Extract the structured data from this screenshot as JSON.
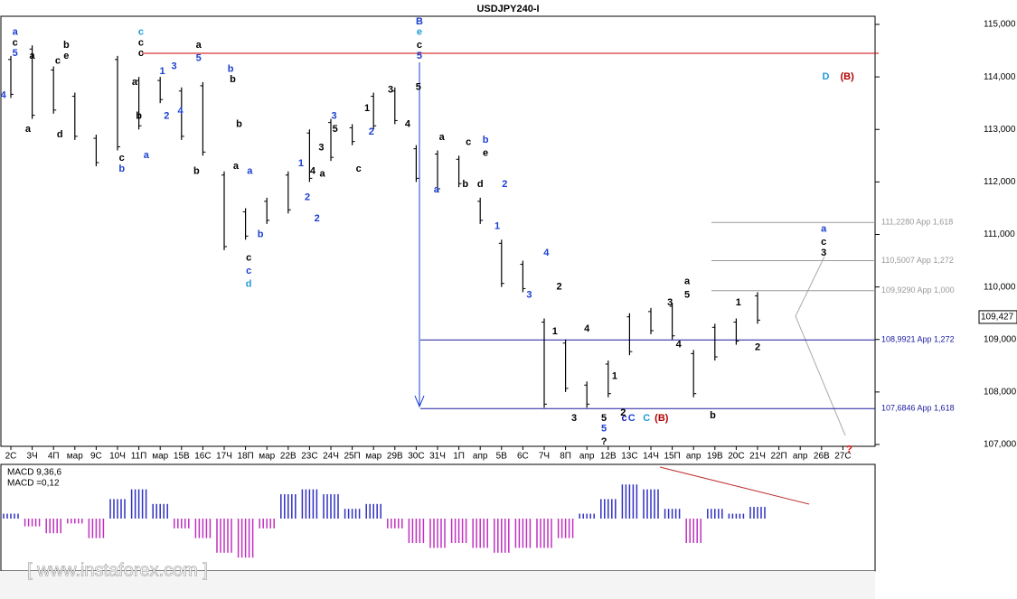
{
  "chart_data": [
    {
      "type": "ohlc",
      "title": "USDJPY240-I",
      "categories": [
        "2C",
        "3Ч",
        "4П",
        "мар",
        "9C",
        "10Ч",
        "11П",
        "мар",
        "15B",
        "16C",
        "17Ч",
        "18П",
        "мар",
        "22B",
        "23C",
        "24Ч",
        "25П",
        "мар",
        "29B",
        "30C",
        "31Ч",
        "1П",
        "апр",
        "5B",
        "6C",
        "7Ч",
        "8П",
        "апр",
        "12B",
        "13C",
        "14Ч",
        "15П",
        "апр",
        "19B",
        "20C",
        "21Ч",
        "22П",
        "апр",
        "26B",
        "27C"
      ],
      "high": [
        114.4,
        114.6,
        114.2,
        113.7,
        112.9,
        114.4,
        114.0,
        114.0,
        113.8,
        113.9,
        112.2,
        111.5,
        111.7,
        112.2,
        113.0,
        113.2,
        113.1,
        113.7,
        113.8,
        112.7,
        112.6,
        112.5,
        111.7,
        110.9,
        110.5,
        109.4,
        109.0,
        108.2,
        108.6,
        109.5,
        109.6,
        109.7,
        108.8,
        109.3,
        109.4,
        109.9,
        null,
        null,
        null,
        null
      ],
      "low": [
        113.6,
        113.2,
        113.3,
        112.8,
        112.3,
        112.6,
        113.0,
        113.5,
        112.8,
        112.5,
        110.7,
        110.9,
        111.2,
        111.4,
        112.0,
        112.4,
        112.7,
        113.0,
        113.1,
        112.0,
        111.8,
        111.9,
        111.2,
        110.0,
        109.9,
        107.7,
        108.0,
        107.7,
        107.9,
        108.7,
        109.1,
        109.0,
        107.9,
        108.6,
        108.9,
        109.3,
        null,
        null,
        null,
        null
      ],
      "ylim": [
        107,
        115
      ],
      "yticks": [
        {
          "value": 107,
          "label": "107,000"
        },
        {
          "value": 108,
          "label": "108,000"
        },
        {
          "value": 109,
          "label": "109,000"
        },
        {
          "value": 110,
          "label": "110,000"
        },
        {
          "value": 111,
          "label": "111,000"
        },
        {
          "value": 112,
          "label": "112,000"
        },
        {
          "value": 113,
          "label": "113,000"
        },
        {
          "value": 114,
          "label": "114,000"
        },
        {
          "value": 115,
          "label": "115,000"
        }
      ],
      "last_price": {
        "value": 109.427,
        "label": "109,427"
      },
      "color": "#000000",
      "levels": [
        {
          "value": 114.45,
          "color": "#cc0000"
        },
        {
          "value": 111.228,
          "label": "111,2280 App 1,618",
          "color": "#999999"
        },
        {
          "value": 110.5007,
          "label": "110,5007 App 1,272",
          "color": "#999999"
        },
        {
          "value": 109.929,
          "label": "109,9290 App 1,000",
          "color": "#999999"
        },
        {
          "value": 108.9921,
          "label": "108,9921 App 1,272",
          "color": "#1a1aa0"
        },
        {
          "value": 107.6846,
          "label": "107,6846 App 1,618",
          "color": "#1a1aa0"
        }
      ],
      "annotations": [
        {
          "text": "a",
          "x": 0.2,
          "y": 114.85,
          "color": "#1a3fd0"
        },
        {
          "text": "c",
          "x": 0.2,
          "y": 114.65,
          "color": "#000000"
        },
        {
          "text": "5",
          "x": 0.2,
          "y": 114.45,
          "color": "#1a3fd0"
        },
        {
          "text": "4",
          "x": -0.35,
          "y": 113.65,
          "color": "#1a3fd0"
        },
        {
          "text": "a",
          "x": 1.0,
          "y": 114.4,
          "color": "#000000"
        },
        {
          "text": "a",
          "x": 0.8,
          "y": 113.0,
          "color": "#000000"
        },
        {
          "text": "d",
          "x": 2.3,
          "y": 112.9,
          "color": "#000000"
        },
        {
          "text": "c",
          "x": 2.2,
          "y": 114.3,
          "color": "#000000"
        },
        {
          "text": "e",
          "x": 2.6,
          "y": 114.4,
          "color": "#000000"
        },
        {
          "text": "b",
          "x": 2.6,
          "y": 114.6,
          "color": "#000000"
        },
        {
          "text": "c",
          "x": 6.1,
          "y": 114.85,
          "color": "#1e9ad6"
        },
        {
          "text": "c",
          "x": 6.1,
          "y": 114.65,
          "color": "#000000"
        },
        {
          "text": "c",
          "x": 6.1,
          "y": 114.45,
          "color": "#000000"
        },
        {
          "text": "a",
          "x": 5.8,
          "y": 113.9,
          "color": "#000000"
        },
        {
          "text": "b",
          "x": 6.0,
          "y": 113.25,
          "color": "#000000"
        },
        {
          "text": "a",
          "x": 6.35,
          "y": 112.5,
          "color": "#1a3fd0"
        },
        {
          "text": "c",
          "x": 5.2,
          "y": 112.45,
          "color": "#000000"
        },
        {
          "text": "b",
          "x": 5.2,
          "y": 112.25,
          "color": "#1a3fd0"
        },
        {
          "text": "1",
          "x": 7.1,
          "y": 114.1,
          "color": "#1a3fd0"
        },
        {
          "text": "3",
          "x": 7.65,
          "y": 114.2,
          "color": "#1a3fd0"
        },
        {
          "text": "2",
          "x": 7.3,
          "y": 113.25,
          "color": "#1a3fd0"
        },
        {
          "text": "4",
          "x": 7.95,
          "y": 113.35,
          "color": "#1a3fd0"
        },
        {
          "text": "a",
          "x": 8.8,
          "y": 114.6,
          "color": "#000000"
        },
        {
          "text": "5",
          "x": 8.8,
          "y": 114.35,
          "color": "#1a3fd0"
        },
        {
          "text": "b",
          "x": 8.7,
          "y": 112.2,
          "color": "#000000"
        },
        {
          "text": "b",
          "x": 10.3,
          "y": 114.15,
          "color": "#1a3fd0"
        },
        {
          "text": "b",
          "x": 10.4,
          "y": 113.95,
          "color": "#000000"
        },
        {
          "text": "b",
          "x": 10.7,
          "y": 113.1,
          "color": "#000000"
        },
        {
          "text": "a",
          "x": 10.55,
          "y": 112.3,
          "color": "#000000"
        },
        {
          "text": "a",
          "x": 11.2,
          "y": 112.2,
          "color": "#1a3fd0"
        },
        {
          "text": "b",
          "x": 11.7,
          "y": 111.0,
          "color": "#1a3fd0"
        },
        {
          "text": "c",
          "x": 11.15,
          "y": 110.55,
          "color": "#000000"
        },
        {
          "text": "c",
          "x": 11.15,
          "y": 110.3,
          "color": "#1a3fd0"
        },
        {
          "text": "d",
          "x": 11.15,
          "y": 110.05,
          "color": "#1e9ad6"
        },
        {
          "text": "1",
          "x": 13.6,
          "y": 112.35,
          "color": "#1a3fd0"
        },
        {
          "text": "2",
          "x": 13.9,
          "y": 111.7,
          "color": "#1a3fd0"
        },
        {
          "text": "2",
          "x": 14.35,
          "y": 111.3,
          "color": "#1a3fd0"
        },
        {
          "text": "3",
          "x": 14.55,
          "y": 112.65,
          "color": "#000000"
        },
        {
          "text": "4",
          "x": 14.15,
          "y": 112.2,
          "color": "#000000"
        },
        {
          "text": "3",
          "x": 15.15,
          "y": 113.25,
          "color": "#1a3fd0"
        },
        {
          "text": "5",
          "x": 15.2,
          "y": 113.0,
          "color": "#000000"
        },
        {
          "text": "a",
          "x": 14.6,
          "y": 112.15,
          "color": "#000000"
        },
        {
          "text": "c",
          "x": 16.3,
          "y": 112.25,
          "color": "#000000"
        },
        {
          "text": "1",
          "x": 16.7,
          "y": 113.4,
          "color": "#000000"
        },
        {
          "text": "2",
          "x": 16.9,
          "y": 112.95,
          "color": "#1a3fd0"
        },
        {
          "text": "3",
          "x": 17.8,
          "y": 113.75,
          "color": "#000000"
        },
        {
          "text": "4",
          "x": 18.6,
          "y": 113.1,
          "color": "#000000"
        },
        {
          "text": "B",
          "x": 19.15,
          "y": 115.05,
          "color": "#1a3fd0"
        },
        {
          "text": "e",
          "x": 19.15,
          "y": 114.85,
          "color": "#1e9ad6"
        },
        {
          "text": "c",
          "x": 19.15,
          "y": 114.6,
          "color": "#000000"
        },
        {
          "text": "5",
          "x": 19.15,
          "y": 114.4,
          "color": "#1a3fd0"
        },
        {
          "text": "5",
          "x": 19.1,
          "y": 113.8,
          "color": "#000000"
        },
        {
          "text": "a",
          "x": 20.2,
          "y": 112.85,
          "color": "#000000"
        },
        {
          "text": "a",
          "x": 19.95,
          "y": 111.85,
          "color": "#1a3fd0"
        },
        {
          "text": "c",
          "x": 21.45,
          "y": 112.75,
          "color": "#000000"
        },
        {
          "text": "e",
          "x": 22.25,
          "y": 112.55,
          "color": "#000000"
        },
        {
          "text": "b",
          "x": 22.25,
          "y": 112.8,
          "color": "#1a3fd0"
        },
        {
          "text": "b",
          "x": 21.3,
          "y": 111.95,
          "color": "#000000"
        },
        {
          "text": "d",
          "x": 22.0,
          "y": 111.95,
          "color": "#000000"
        },
        {
          "text": "2",
          "x": 23.15,
          "y": 111.95,
          "color": "#1a3fd0"
        },
        {
          "text": "1",
          "x": 22.8,
          "y": 111.15,
          "color": "#1a3fd0"
        },
        {
          "text": "4",
          "x": 25.1,
          "y": 110.65,
          "color": "#1a3fd0"
        },
        {
          "text": "3",
          "x": 24.3,
          "y": 109.85,
          "color": "#1a3fd0"
        },
        {
          "text": "2",
          "x": 25.7,
          "y": 110.0,
          "color": "#000000"
        },
        {
          "text": "1",
          "x": 25.5,
          "y": 109.15,
          "color": "#000000"
        },
        {
          "text": "3",
          "x": 26.4,
          "y": 107.5,
          "color": "#000000"
        },
        {
          "text": "4",
          "x": 27.0,
          "y": 109.2,
          "color": "#000000"
        },
        {
          "text": "5",
          "x": 27.8,
          "y": 107.5,
          "color": "#000000"
        },
        {
          "text": "5",
          "x": 27.8,
          "y": 107.3,
          "color": "#1a3fd0"
        },
        {
          "text": "?",
          "x": 27.8,
          "y": 107.05,
          "color": "#000000"
        },
        {
          "text": "1",
          "x": 28.3,
          "y": 108.3,
          "color": "#000000"
        },
        {
          "text": "2",
          "x": 28.7,
          "y": 107.6,
          "color": "#000000"
        },
        {
          "text": "c",
          "x": 28.75,
          "y": 107.5,
          "color": "#1a1aa0"
        },
        {
          "text": "C",
          "x": 29.1,
          "y": 107.5,
          "color": "#1a3fd0"
        },
        {
          "text": "C",
          "x": 29.8,
          "y": 107.5,
          "color": "#1e9ad6"
        },
        {
          "text": "(B)",
          "x": 30.5,
          "y": 107.5,
          "color": "#b00000"
        },
        {
          "text": "3",
          "x": 30.9,
          "y": 109.7,
          "color": "#000000"
        },
        {
          "text": "4",
          "x": 31.3,
          "y": 108.9,
          "color": "#000000"
        },
        {
          "text": "a",
          "x": 31.7,
          "y": 110.1,
          "color": "#000000"
        },
        {
          "text": "5",
          "x": 31.7,
          "y": 109.85,
          "color": "#000000"
        },
        {
          "text": "b",
          "x": 32.9,
          "y": 107.55,
          "color": "#000000"
        },
        {
          "text": "1",
          "x": 34.1,
          "y": 109.7,
          "color": "#000000"
        },
        {
          "text": "2",
          "x": 35.0,
          "y": 108.85,
          "color": "#000000"
        },
        {
          "text": "a",
          "x": 38.1,
          "y": 111.1,
          "color": "#1a3fd0"
        },
        {
          "text": "c",
          "x": 38.1,
          "y": 110.85,
          "color": "#000000"
        },
        {
          "text": "3",
          "x": 38.1,
          "y": 110.65,
          "color": "#000000"
        },
        {
          "text": "?",
          "x": 39.3,
          "y": 106.9,
          "color": "#e00000"
        },
        {
          "text": "D",
          "x": 38.2,
          "y": 114.0,
          "color": "#1e9ad6"
        },
        {
          "text": "(B)",
          "x": 39.2,
          "y": 114.0,
          "color": "#b00000"
        }
      ]
    },
    {
      "type": "bar",
      "title": "MACD 9,36,6",
      "subtitle": "MACD =0,12",
      "values": [
        0.05,
        -0.08,
        -0.15,
        -0.05,
        -0.2,
        0.2,
        0.3,
        0.15,
        -0.1,
        -0.2,
        -0.35,
        -0.4,
        -0.1,
        0.25,
        0.3,
        0.25,
        0.1,
        0.15,
        -0.1,
        -0.25,
        -0.3,
        -0.25,
        -0.3,
        -0.35,
        -0.3,
        -0.3,
        -0.2,
        0.05,
        0.2,
        0.35,
        0.3,
        0.1,
        -0.25,
        0.1,
        0.05,
        0.12
      ],
      "ylim": [
        -0.5,
        0.5
      ],
      "colors": {
        "positive": "#3030c0",
        "negative": "#c030c0"
      }
    },
    {
      "type": "text",
      "watermark": "[ www.instaforex.com ]"
    }
  ]
}
